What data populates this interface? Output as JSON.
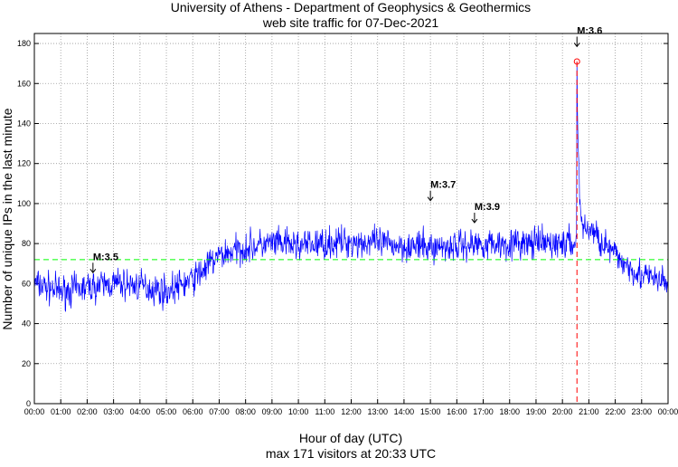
{
  "chart_data": {
    "type": "line",
    "title": "University of Athens - Department of Geophysics & Geothermics",
    "subtitle": "web site traffic for 07-Dec-2021",
    "xlabel": "Hour of day (UTC)",
    "footer": "max 171 visitors at 20:33 UTC",
    "ylabel": "Number of unique IPs in the last minute",
    "xlim": [
      0,
      24
    ],
    "ylim": [
      0,
      185
    ],
    "grid": true,
    "x_ticks": [
      "00:00",
      "01:00",
      "02:00",
      "03:00",
      "04:00",
      "05:00",
      "06:00",
      "07:00",
      "08:00",
      "09:00",
      "10:00",
      "11:00",
      "12:00",
      "13:00",
      "14:00",
      "15:00",
      "16:00",
      "17:00",
      "18:00",
      "19:00",
      "20:00",
      "21:00",
      "22:00",
      "23:00",
      "00:00"
    ],
    "y_ticks": [
      0,
      20,
      40,
      60,
      80,
      100,
      120,
      140,
      160,
      180
    ],
    "series": [
      {
        "name": "unique IPs per minute",
        "color": "#0000ff",
        "hourly_baseline_x": [
          0,
          1,
          2,
          3,
          4,
          5,
          6,
          7,
          8,
          9,
          10,
          11,
          12,
          13,
          14,
          15,
          16,
          17,
          18,
          19,
          20,
          20.5,
          21,
          22,
          23,
          24
        ],
        "hourly_baseline_y": [
          60,
          56,
          58,
          60,
          59,
          56,
          62,
          74,
          78,
          80,
          79,
          80,
          81,
          80,
          79,
          78,
          79,
          80,
          80,
          80,
          80,
          80,
          88,
          74,
          64,
          60
        ],
        "noise_amplitude": 6,
        "peak": {
          "x": 20.55,
          "y": 171
        }
      }
    ],
    "mean_line": {
      "value": 72,
      "color": "#00ff00"
    },
    "max_marker": {
      "x": 20.55,
      "color": "#ff0000"
    },
    "annotations": [
      {
        "label": "M:3.5",
        "x": 2.22,
        "y": 65
      },
      {
        "label": "M:3.7",
        "x": 15.0,
        "y": 101
      },
      {
        "label": "M:3.9",
        "x": 16.67,
        "y": 90
      },
      {
        "label": "M:3.6",
        "x": 20.55,
        "y": 178
      }
    ]
  }
}
